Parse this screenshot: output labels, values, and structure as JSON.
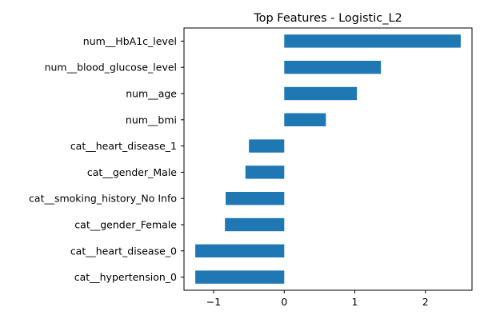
{
  "chart_data": {
    "type": "bar",
    "orientation": "horizontal",
    "title": "Top Features - Logistic_L2",
    "xlabel": "",
    "ylabel": "",
    "categories": [
      "num__HbA1c_level",
      "num__blood_glucose_level",
      "num__age",
      "num__bmi",
      "cat__heart_disease_1",
      "cat__gender_Male",
      "cat__smoking_history_No Info",
      "cat__gender_Female",
      "cat__heart_disease_0",
      "cat__hypertension_0"
    ],
    "values": [
      2.5,
      1.37,
      1.03,
      0.59,
      -0.5,
      -0.55,
      -0.83,
      -0.84,
      -1.26,
      -1.26
    ],
    "xlim": [
      -1.42,
      2.66
    ],
    "xticks": [
      -1,
      0,
      1,
      2
    ],
    "xtick_labels": [
      "−1",
      "0",
      "1",
      "2"
    ],
    "bar_color": "#1f77b4",
    "grid": false,
    "legend": "none"
  }
}
